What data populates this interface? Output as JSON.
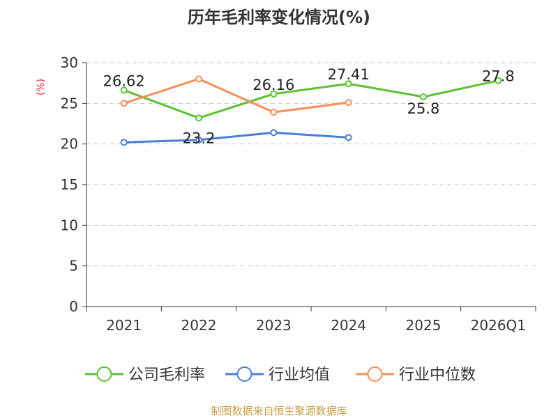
{
  "chart_data": {
    "type": "line",
    "title": "历年毛利率变化情况(%)",
    "ylabel": "(%)",
    "xlabel": "",
    "categories": [
      "2021",
      "2022",
      "2023",
      "2024",
      "2025",
      "2026Q1"
    ],
    "yticks": [
      "0",
      "5",
      "10",
      "15",
      "20",
      "25",
      "30"
    ],
    "ylim": [
      0,
      30
    ],
    "grid": true,
    "legend_position": "bottom",
    "series": [
      {
        "name": "公司毛利率",
        "color": "#59c32f",
        "values": [
          26.62,
          23.2,
          26.16,
          27.41,
          25.8,
          27.8
        ],
        "labels": [
          "26.62",
          "23.2",
          "26.16",
          "27.41",
          "25.8",
          "27.8"
        ]
      },
      {
        "name": "行业均值",
        "color": "#4a7fd6",
        "values": [
          20.2,
          20.5,
          21.4,
          20.8,
          null,
          null
        ],
        "labels": []
      },
      {
        "name": "行业中位数",
        "color": "#f88f59",
        "values": [
          25.0,
          28.0,
          23.9,
          25.1,
          null,
          null
        ],
        "labels": []
      }
    ]
  },
  "source": "制图数据来自恒生聚源数据库"
}
